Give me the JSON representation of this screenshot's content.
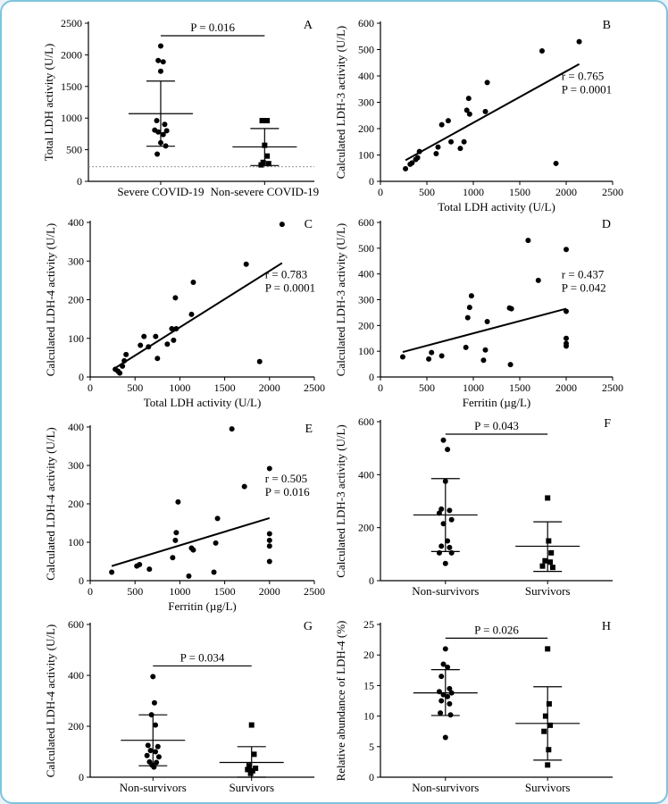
{
  "chart_data": [
    {
      "id": "A",
      "type": "scatter",
      "panel_label": "A",
      "ylabel": "Total LDH activity (U/L)",
      "ylim": [
        0,
        2500
      ],
      "yticks": [
        0,
        500,
        1000,
        1500,
        2000,
        2500
      ],
      "categories": [
        "Severe COVID-19",
        "Non-severe COVID-19"
      ],
      "groups": [
        {
          "name": "Severe COVID-19",
          "marker": "circle",
          "mean": 1070,
          "sd_low": 555,
          "sd_high": 1585,
          "points": [
            [
              0,
              2140
            ],
            [
              -0.05,
              1910
            ],
            [
              0.05,
              1890
            ],
            [
              0,
              1740
            ],
            [
              -0.08,
              960
            ],
            [
              0.08,
              900
            ],
            [
              -0.12,
              810
            ],
            [
              0.12,
              800
            ],
            [
              -0.05,
              780
            ],
            [
              0.05,
              740
            ],
            [
              0,
              610
            ],
            [
              0.1,
              560
            ],
            [
              -0.07,
              430
            ]
          ]
        },
        {
          "name": "Non-severe COVID-19",
          "marker": "square",
          "mean": 545,
          "sd_low": 250,
          "sd_high": 835,
          "points": [
            [
              -0.05,
              960
            ],
            [
              0.05,
              960
            ],
            [
              0,
              570
            ],
            [
              0.05,
              400
            ],
            [
              -0.03,
              300
            ],
            [
              0.08,
              280
            ],
            [
              -0.07,
              260
            ]
          ]
        }
      ],
      "reference_line": 230,
      "annotation": {
        "text": "P = 0.016"
      }
    },
    {
      "id": "B",
      "type": "scatter",
      "panel_label": "B",
      "xlabel": "Total LDH activity (U/L)",
      "ylabel": "Calculated LDH-3 activity (U/L)",
      "xlim": [
        0,
        2500
      ],
      "ylim": [
        0,
        600
      ],
      "xticks": [
        0,
        500,
        1000,
        1500,
        2000,
        2500
      ],
      "yticks": [
        0,
        100,
        200,
        300,
        400,
        500,
        600
      ],
      "points": [
        [
          270,
          48
        ],
        [
          320,
          65
        ],
        [
          340,
          70
        ],
        [
          380,
          83
        ],
        [
          400,
          90
        ],
        [
          420,
          113
        ],
        [
          600,
          105
        ],
        [
          620,
          130
        ],
        [
          660,
          215
        ],
        [
          730,
          230
        ],
        [
          760,
          150
        ],
        [
          860,
          125
        ],
        [
          900,
          150
        ],
        [
          930,
          270
        ],
        [
          950,
          315
        ],
        [
          960,
          255
        ],
        [
          1130,
          265
        ],
        [
          1150,
          375
        ],
        [
          1740,
          495
        ],
        [
          1890,
          68
        ],
        [
          2140,
          530
        ]
      ],
      "fit_line": [
        [
          270,
          80
        ],
        [
          2140,
          445
        ]
      ],
      "stats": [
        "r = 0.765",
        "P = 0.0001"
      ]
    },
    {
      "id": "C",
      "type": "scatter",
      "panel_label": "C",
      "xlabel": "Total LDH activity (U/L)",
      "ylabel": "Calculated LDH-4 activity (U/L)",
      "xlim": [
        0,
        2500
      ],
      "ylim": [
        0,
        400
      ],
      "xticks": [
        0,
        500,
        1000,
        1500,
        2000,
        2500
      ],
      "yticks": [
        0,
        100,
        200,
        300,
        400
      ],
      "points": [
        [
          280,
          20
        ],
        [
          310,
          15
        ],
        [
          330,
          10
        ],
        [
          360,
          28
        ],
        [
          380,
          42
        ],
        [
          400,
          58
        ],
        [
          560,
          82
        ],
        [
          600,
          105
        ],
        [
          650,
          78
        ],
        [
          730,
          105
        ],
        [
          750,
          48
        ],
        [
          860,
          85
        ],
        [
          910,
          125
        ],
        [
          930,
          95
        ],
        [
          950,
          205
        ],
        [
          960,
          125
        ],
        [
          1130,
          162
        ],
        [
          1150,
          245
        ],
        [
          1740,
          292
        ],
        [
          1890,
          40
        ],
        [
          2140,
          395
        ]
      ],
      "fit_line": [
        [
          270,
          22
        ],
        [
          2140,
          295
        ]
      ],
      "stats": [
        "r = 0.783",
        "P = 0.0001"
      ]
    },
    {
      "id": "D",
      "type": "scatter",
      "panel_label": "D",
      "xlabel": "Ferritin (µg/L)",
      "ylabel": "Calculated LDH-3 activity (U/L)",
      "xlim": [
        0,
        2500
      ],
      "ylim": [
        0,
        600
      ],
      "xticks": [
        0,
        500,
        1000,
        1500,
        2000,
        2500
      ],
      "yticks": [
        0,
        100,
        200,
        300,
        400,
        500,
        600
      ],
      "points": [
        [
          240,
          78
        ],
        [
          520,
          70
        ],
        [
          550,
          95
        ],
        [
          660,
          82
        ],
        [
          920,
          115
        ],
        [
          940,
          230
        ],
        [
          960,
          270
        ],
        [
          980,
          315
        ],
        [
          1110,
          65
        ],
        [
          1130,
          105
        ],
        [
          1150,
          215
        ],
        [
          1390,
          268
        ],
        [
          1410,
          265
        ],
        [
          1400,
          48
        ],
        [
          1590,
          530
        ],
        [
          1700,
          375
        ],
        [
          2000,
          495
        ],
        [
          2000,
          255
        ],
        [
          2000,
          150
        ],
        [
          2000,
          130
        ],
        [
          2000,
          120
        ]
      ],
      "fit_line": [
        [
          240,
          97
        ],
        [
          2000,
          265
        ]
      ],
      "stats": [
        "r = 0.437",
        "P = 0.042"
      ]
    },
    {
      "id": "E",
      "type": "scatter",
      "panel_label": "E",
      "xlabel": "Ferritin (µg/L)",
      "ylabel": "Calculated LDH-4 activity (U/L)",
      "xlim": [
        0,
        2500
      ],
      "ylim": [
        0,
        400
      ],
      "xticks": [
        0,
        500,
        1000,
        1500,
        2000,
        2500
      ],
      "yticks": [
        0,
        100,
        200,
        300,
        400
      ],
      "points": [
        [
          240,
          22
        ],
        [
          520,
          38
        ],
        [
          550,
          42
        ],
        [
          660,
          30
        ],
        [
          920,
          60
        ],
        [
          950,
          105
        ],
        [
          960,
          125
        ],
        [
          980,
          205
        ],
        [
          1100,
          12
        ],
        [
          1130,
          85
        ],
        [
          1150,
          80
        ],
        [
          1380,
          22
        ],
        [
          1400,
          98
        ],
        [
          1420,
          162
        ],
        [
          1580,
          395
        ],
        [
          1720,
          245
        ],
        [
          2000,
          292
        ],
        [
          2000,
          122
        ],
        [
          2000,
          105
        ],
        [
          2000,
          90
        ],
        [
          2000,
          50
        ]
      ],
      "fit_line": [
        [
          240,
          38
        ],
        [
          2000,
          163
        ]
      ],
      "stats": [
        "r = 0.505",
        "P = 0.016"
      ]
    },
    {
      "id": "F",
      "type": "scatter",
      "panel_label": "F",
      "ylabel": "Calculated LDH-3 activity (U/L)",
      "ylim": [
        0,
        600
      ],
      "yticks": [
        0,
        200,
        400,
        600
      ],
      "categories": [
        "Non-survivors",
        "Survivors"
      ],
      "groups": [
        {
          "name": "Non-survivors",
          "marker": "circle",
          "mean": 248,
          "sd_low": 110,
          "sd_high": 385,
          "points": [
            [
              -0.04,
              530
            ],
            [
              0.04,
              495
            ],
            [
              0,
              375
            ],
            [
              -0.08,
              270
            ],
            [
              0.08,
              265
            ],
            [
              -0.12,
              255
            ],
            [
              0.12,
              230
            ],
            [
              -0.04,
              215
            ],
            [
              0.04,
              150
            ],
            [
              -0.08,
              130
            ],
            [
              0.08,
              125
            ],
            [
              -0.12,
              105
            ],
            [
              0.12,
              105
            ],
            [
              0,
              65
            ]
          ]
        },
        {
          "name": "Survivors",
          "marker": "square",
          "mean": 130,
          "sd_low": 35,
          "sd_high": 222,
          "points": [
            [
              0,
              312
            ],
            [
              0.02,
              150
            ],
            [
              0.07,
              105
            ],
            [
              -0.05,
              75
            ],
            [
              0.05,
              70
            ],
            [
              -0.1,
              55
            ],
            [
              0.1,
              50
            ]
          ]
        }
      ],
      "annotation": {
        "text": "P = 0.043"
      }
    },
    {
      "id": "G",
      "type": "scatter",
      "panel_label": "G",
      "ylabel": "Calculated LDH-4 activity (U/L)",
      "ylim": [
        0,
        600
      ],
      "yticks": [
        0,
        200,
        400,
        600
      ],
      "categories": [
        "Non-survivors",
        "Survivors"
      ],
      "groups": [
        {
          "name": "Non-survivors",
          "marker": "circle",
          "mean": 145,
          "sd_low": 45,
          "sd_high": 245,
          "points": [
            [
              0,
              395
            ],
            [
              0.03,
              292
            ],
            [
              -0.03,
              245
            ],
            [
              0.05,
              205
            ],
            [
              -0.1,
              125
            ],
            [
              0.1,
              120
            ],
            [
              -0.05,
              105
            ],
            [
              0.05,
              100
            ],
            [
              -0.12,
              85
            ],
            [
              0.12,
              80
            ],
            [
              -0.07,
              60
            ],
            [
              0.07,
              58
            ],
            [
              -0.02,
              48
            ],
            [
              0.02,
              40
            ]
          ]
        },
        {
          "name": "Survivors",
          "marker": "square",
          "mean": 58,
          "sd_low": 0,
          "sd_high": 120,
          "points": [
            [
              0,
              205
            ],
            [
              0.05,
              90
            ],
            [
              -0.05,
              45
            ],
            [
              0.08,
              35
            ],
            [
              -0.08,
              30
            ],
            [
              0.02,
              25
            ],
            [
              -0.02,
              15
            ]
          ]
        }
      ],
      "annotation": {
        "text": "P = 0.034"
      }
    },
    {
      "id": "H",
      "type": "scatter",
      "panel_label": "H",
      "ylabel": "Relative abundance of LDH-4 (%)",
      "ylim": [
        0,
        25
      ],
      "yticks": [
        0,
        5,
        10,
        15,
        20,
        25
      ],
      "categories": [
        "Non-survivors",
        "Survivors"
      ],
      "groups": [
        {
          "name": "Non-survivors",
          "marker": "circle",
          "mean": 13.8,
          "sd_low": 10.1,
          "sd_high": 17.6,
          "points": [
            [
              0,
              21
            ],
            [
              -0.04,
              18.5
            ],
            [
              0.04,
              18
            ],
            [
              -0.08,
              16.5
            ],
            [
              0.08,
              14.5
            ],
            [
              -0.12,
              14
            ],
            [
              0.12,
              13.8
            ],
            [
              -0.04,
              13.5
            ],
            [
              0.04,
              13.2
            ],
            [
              -0.08,
              12.5
            ],
            [
              0.08,
              12
            ],
            [
              -0.1,
              10.5
            ],
            [
              0.1,
              10.2
            ],
            [
              0,
              6.5
            ]
          ]
        },
        {
          "name": "Survivors",
          "marker": "square",
          "mean": 8.8,
          "sd_low": 2.8,
          "sd_high": 14.8,
          "points": [
            [
              0,
              21
            ],
            [
              0.03,
              12
            ],
            [
              -0.04,
              10
            ],
            [
              0.05,
              8.5
            ],
            [
              -0.07,
              7.5
            ],
            [
              0.02,
              4.5
            ],
            [
              0,
              2
            ]
          ]
        }
      ],
      "annotation": {
        "text": "P = 0.026"
      }
    }
  ]
}
